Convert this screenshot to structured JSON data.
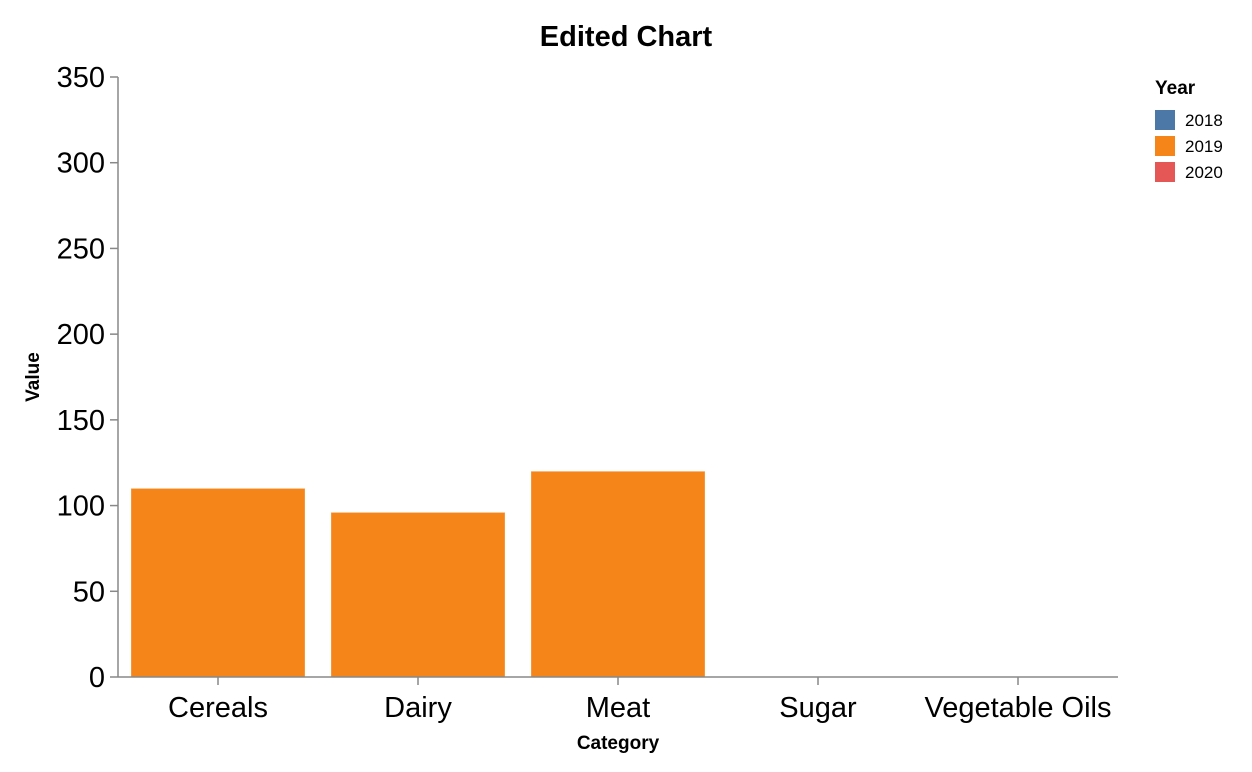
{
  "chart_data": {
    "type": "bar",
    "stacked": true,
    "title": "Edited Chart",
    "xlabel": "Category",
    "ylabel": "Value",
    "categories": [
      "Cereals",
      "Dairy",
      "Meat",
      "Sugar",
      "Vegetable Oils"
    ],
    "ylim": [
      0,
      350
    ],
    "yticks": [
      0,
      50,
      100,
      150,
      200,
      250,
      300,
      350
    ],
    "grid": false,
    "legend": {
      "title": "Year",
      "placement": "top-right"
    },
    "series": [
      {
        "name": "2018",
        "color": "#4c78a8",
        "values": [
          0,
          0,
          0,
          0,
          0
        ]
      },
      {
        "name": "2019",
        "color": "#f58518",
        "values": [
          110,
          96,
          120,
          0,
          0
        ]
      },
      {
        "name": "2020",
        "color": "#e45756",
        "values": [
          0,
          0,
          0,
          0,
          0
        ]
      }
    ]
  }
}
